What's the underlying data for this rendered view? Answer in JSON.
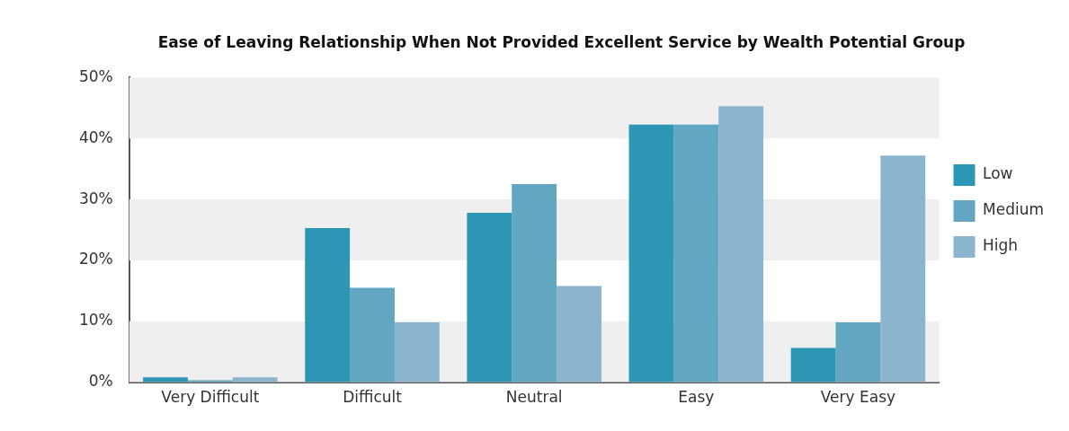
{
  "chart_data": {
    "type": "bar",
    "title": "Ease of Leaving Relationship When Not Provided Excellent Service by Wealth Potential Group",
    "categories": [
      "Very Difficult",
      "Difficult",
      "Neutral",
      "Easy",
      "Very Easy"
    ],
    "series": [
      {
        "name": "Low",
        "color": "#2e96b5",
        "values": [
          0.8,
          25.3,
          27.8,
          42.3,
          5.6
        ]
      },
      {
        "name": "Medium",
        "color": "#62a6c2",
        "values": [
          0.3,
          15.5,
          32.5,
          42.3,
          9.8
        ]
      },
      {
        "name": "High",
        "color": "#8bb5cf",
        "values": [
          0.8,
          9.8,
          15.8,
          45.3,
          37.2
        ]
      }
    ],
    "ylim": [
      0,
      50
    ],
    "yticks": [
      {
        "value": 0,
        "label": "0%"
      },
      {
        "value": 10,
        "label": "10%"
      },
      {
        "value": 20,
        "label": "20%"
      },
      {
        "value": 30,
        "label": "30%"
      },
      {
        "value": 40,
        "label": "40%"
      },
      {
        "value": 50,
        "label": "50%"
      }
    ],
    "bands": [
      {
        "axis": "y",
        "from": 0,
        "to": 10,
        "color": "#efefef"
      },
      {
        "axis": "y",
        "from": 20,
        "to": 30,
        "color": "#efefef"
      },
      {
        "axis": "y",
        "from": 40,
        "to": 50,
        "color": "#efefef"
      }
    ],
    "legend": "right"
  }
}
